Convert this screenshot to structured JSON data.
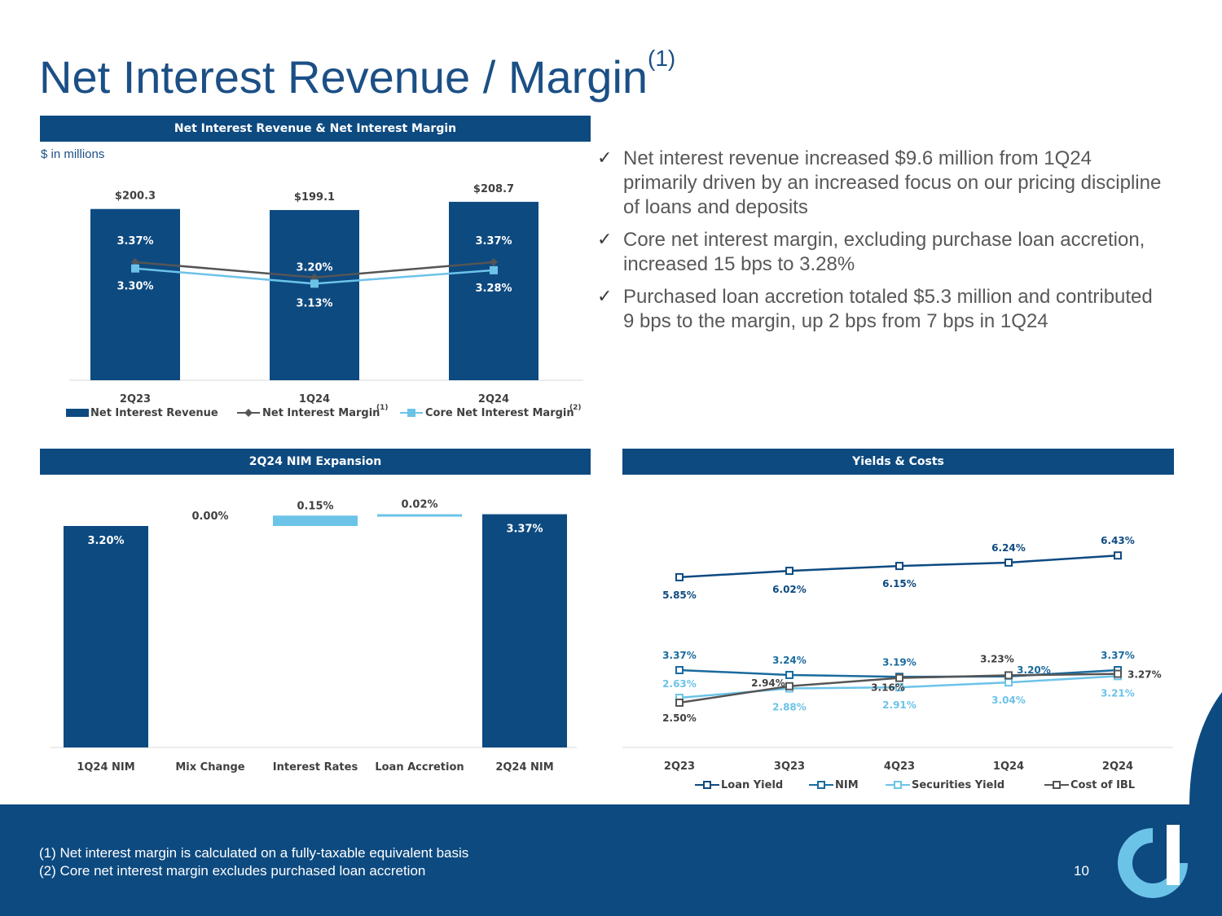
{
  "title": "Net Interest Revenue / Margin",
  "title_sup": "(1)",
  "panel1": {
    "header": "Net Interest Revenue & Net Interest Margin",
    "units": "$ in millions"
  },
  "panel2": {
    "header": "2Q24 NIM Expansion"
  },
  "panel3": {
    "header": "Yields & Costs"
  },
  "bullets": [
    "Net interest revenue increased $9.6 million from 1Q24 primarily driven by an increased focus on our pricing discipline of loans and deposits",
    "Core net interest margin, excluding purchase loan accretion, increased 15 bps to 3.28%",
    "Purchased loan accretion totaled $5.3 million and contributed 9 bps to the margin, up 2 bps from 7 bps in 1Q24"
  ],
  "footnotes": [
    "(1) Net interest margin is calculated on a fully-taxable equivalent basis",
    "(2) Core net interest margin excludes purchased loan accretion"
  ],
  "page_number": "10",
  "colors": {
    "navy": "#0d4a80",
    "light_blue": "#6cc3e8",
    "dark_gray": "#555555",
    "title_blue": "#1b4f86"
  },
  "chart_data": [
    {
      "type": "bar",
      "categories": [
        "2Q23",
        "1Q24",
        "2Q24"
      ],
      "series": [
        {
          "name": "Net Interest Revenue",
          "sup": "",
          "kind": "bar",
          "values": [
            200.3,
            199.1,
            208.7
          ],
          "labels": [
            "$200.3",
            "$199.1",
            "$208.7"
          ]
        },
        {
          "name": "Net Interest Margin",
          "sup": "(1)",
          "kind": "line",
          "values": [
            3.37,
            3.2,
            3.37
          ],
          "labels": [
            "3.37%",
            "3.20%",
            "3.37%"
          ]
        },
        {
          "name": "Core Net Interest Margin",
          "sup": "(2)",
          "kind": "line",
          "values": [
            3.3,
            3.13,
            3.28
          ],
          "labels": [
            "3.30%",
            "3.13%",
            "3.28%"
          ]
        }
      ]
    },
    {
      "type": "bar",
      "subtype": "waterfall",
      "categories": [
        "1Q24 NIM",
        "Mix Change",
        "Interest Rates",
        "Loan Accretion",
        "2Q24 NIM"
      ],
      "values": [
        3.2,
        0.0,
        0.15,
        0.02,
        3.37
      ],
      "labels": [
        "3.20%",
        "0.00%",
        "0.15%",
        "0.02%",
        "3.37%"
      ],
      "kinds": [
        "total",
        "delta",
        "delta",
        "delta",
        "total"
      ]
    },
    {
      "type": "line",
      "categories": [
        "2Q23",
        "3Q23",
        "4Q23",
        "1Q24",
        "2Q24"
      ],
      "series": [
        {
          "name": "Loan Yield",
          "values": [
            5.85,
            6.02,
            6.15,
            6.24,
            6.43
          ],
          "labels": [
            "5.85%",
            "6.02%",
            "6.15%",
            "6.24%",
            "6.43%"
          ]
        },
        {
          "name": "NIM",
          "values": [
            3.37,
            3.24,
            3.19,
            3.2,
            3.37
          ],
          "labels": [
            "3.37%",
            "3.24%",
            "3.19%",
            "3.20%",
            "3.37%"
          ]
        },
        {
          "name": "Securities Yield",
          "values": [
            2.63,
            2.88,
            2.91,
            3.04,
            3.21
          ],
          "labels": [
            "2.63%",
            "2.88%",
            "2.91%",
            "3.04%",
            "3.21%"
          ]
        },
        {
          "name": "Cost of IBL",
          "values": [
            2.5,
            2.94,
            3.16,
            3.23,
            3.27
          ],
          "labels": [
            "2.50%",
            "2.94%",
            "3.16%",
            "3.23%",
            "3.27%"
          ]
        }
      ]
    }
  ]
}
